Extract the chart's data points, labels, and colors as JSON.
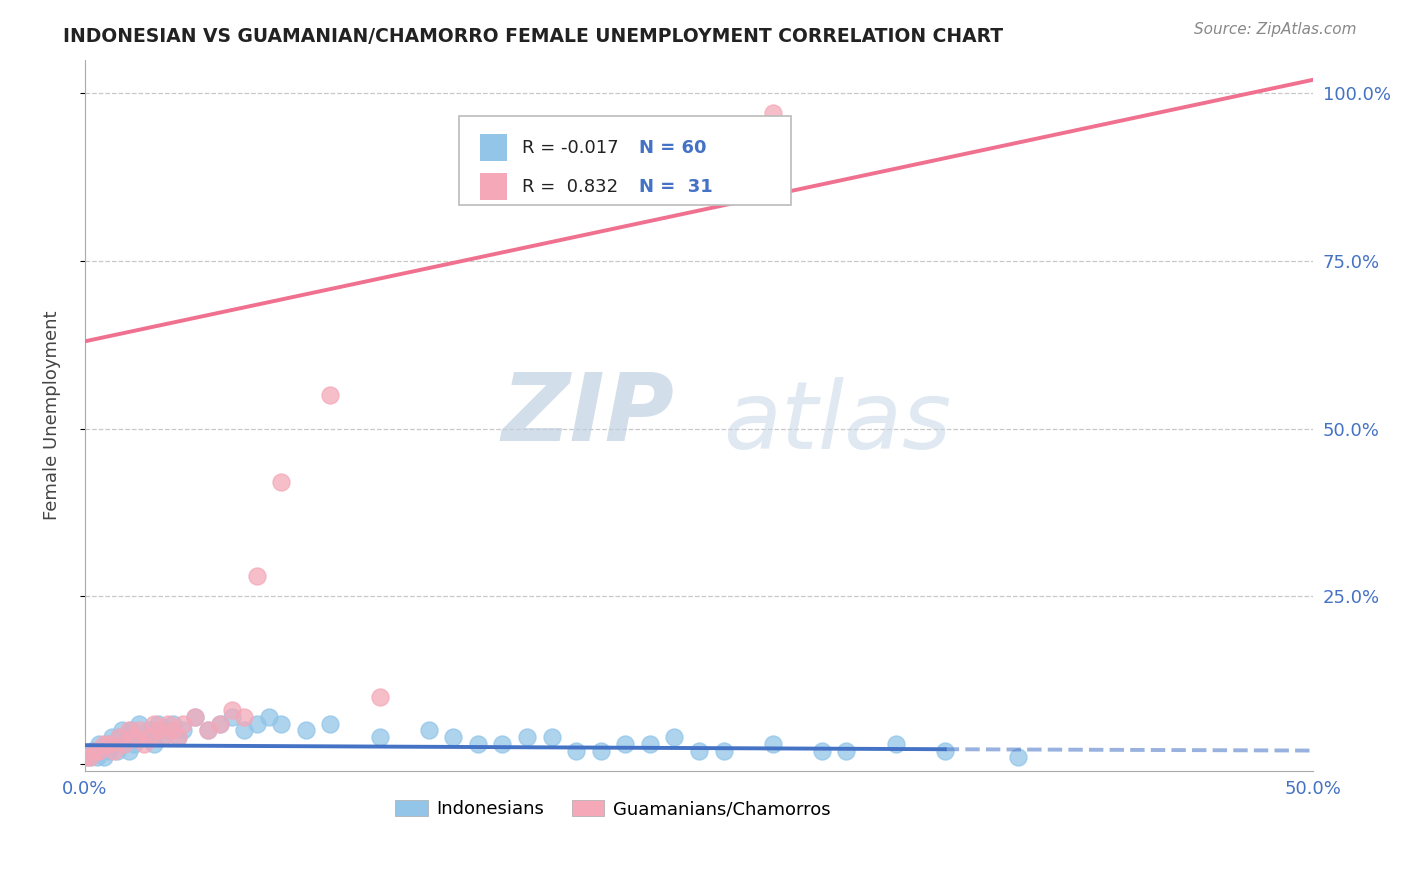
{
  "title": "INDONESIAN VS GUAMANIAN/CHAMORRO FEMALE UNEMPLOYMENT CORRELATION CHART",
  "source": "Source: ZipAtlas.com",
  "ylabel": "Female Unemployment",
  "legend_label_1": "Indonesians",
  "legend_label_2": "Guamanians/Chamorros",
  "R1": -0.017,
  "N1": 60,
  "R2": 0.832,
  "N2": 31,
  "color_blue": "#92C5E8",
  "color_pink": "#F4A8B8",
  "line_blue": "#4472C4",
  "line_pink": "#F07090",
  "watermark_zip": "ZIP",
  "watermark_atlas": "atlas",
  "xlim": [
    0.0,
    0.5
  ],
  "ylim": [
    0.0,
    1.0
  ],
  "indonesian_x": [
    0.0,
    0.002,
    0.003,
    0.004,
    0.005,
    0.006,
    0.007,
    0.008,
    0.009,
    0.01,
    0.011,
    0.012,
    0.013,
    0.014,
    0.015,
    0.016,
    0.017,
    0.018,
    0.019,
    0.02,
    0.022,
    0.024,
    0.026,
    0.028,
    0.03,
    0.032,
    0.034,
    0.036,
    0.038,
    0.04,
    0.045,
    0.05,
    0.055,
    0.06,
    0.065,
    0.07,
    0.075,
    0.08,
    0.09,
    0.1,
    0.12,
    0.14,
    0.16,
    0.18,
    0.2,
    0.22,
    0.24,
    0.26,
    0.28,
    0.3,
    0.15,
    0.17,
    0.19,
    0.21,
    0.23,
    0.25,
    0.31,
    0.33,
    0.35,
    0.38
  ],
  "indonesian_y": [
    0.01,
    0.01,
    0.02,
    0.02,
    0.01,
    0.03,
    0.02,
    0.01,
    0.03,
    0.02,
    0.04,
    0.03,
    0.02,
    0.04,
    0.05,
    0.03,
    0.04,
    0.02,
    0.05,
    0.03,
    0.06,
    0.04,
    0.05,
    0.03,
    0.06,
    0.04,
    0.05,
    0.06,
    0.04,
    0.05,
    0.07,
    0.05,
    0.06,
    0.07,
    0.05,
    0.06,
    0.07,
    0.06,
    0.05,
    0.06,
    0.04,
    0.05,
    0.03,
    0.04,
    0.02,
    0.03,
    0.04,
    0.02,
    0.03,
    0.02,
    0.04,
    0.03,
    0.04,
    0.02,
    0.03,
    0.02,
    0.02,
    0.03,
    0.02,
    0.01
  ],
  "guamanian_x": [
    0.0,
    0.002,
    0.004,
    0.006,
    0.008,
    0.01,
    0.012,
    0.014,
    0.016,
    0.018,
    0.02,
    0.022,
    0.024,
    0.026,
    0.028,
    0.03,
    0.032,
    0.034,
    0.036,
    0.038,
    0.04,
    0.045,
    0.05,
    0.055,
    0.06,
    0.065,
    0.07,
    0.08,
    0.28,
    0.1,
    0.12
  ],
  "guamanian_y": [
    0.01,
    0.01,
    0.02,
    0.02,
    0.03,
    0.03,
    0.02,
    0.04,
    0.03,
    0.05,
    0.04,
    0.05,
    0.03,
    0.04,
    0.06,
    0.05,
    0.04,
    0.06,
    0.05,
    0.04,
    0.06,
    0.07,
    0.05,
    0.06,
    0.08,
    0.07,
    0.28,
    0.42,
    0.97,
    0.55,
    0.1
  ],
  "line_pink_x0": 0.0,
  "line_pink_y0": 0.63,
  "line_pink_x1": 0.5,
  "line_pink_y1": 1.02,
  "line_blue_x0": 0.0,
  "line_blue_y0": 0.028,
  "line_blue_x1": 0.35,
  "line_blue_y1": 0.022,
  "line_blue_dash_x0": 0.35,
  "line_blue_dash_y0": 0.022,
  "line_blue_dash_x1": 0.5,
  "line_blue_dash_y1": 0.02
}
